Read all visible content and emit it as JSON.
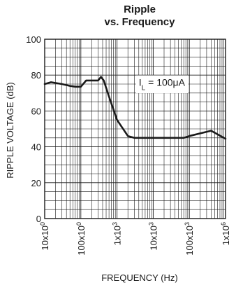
{
  "chart_data": {
    "type": "line",
    "title": "Ripple",
    "subtitle": "vs. Frequency",
    "xlabel": "FREQUENCY (Hz)",
    "ylabel": "RIPPLE VOLTAGE (dB)",
    "x_scale": "log",
    "xlim": [
      10,
      1000000
    ],
    "ylim": [
      0,
      100
    ],
    "grid": true,
    "x_ticks": [
      {
        "value": 10,
        "label": "10x10",
        "sup": "0"
      },
      {
        "value": 100,
        "label": "100x10",
        "sup": "0"
      },
      {
        "value": 1000,
        "label": "1x10",
        "sup": "3"
      },
      {
        "value": 10000,
        "label": "10x10",
        "sup": "3"
      },
      {
        "value": 100000,
        "label": "100x10",
        "sup": "3"
      },
      {
        "value": 1000000,
        "label": "1x10",
        "sup": "6"
      }
    ],
    "y_ticks": [
      0,
      20,
      40,
      60,
      80,
      100
    ],
    "annotation": {
      "main": "I",
      "sub": "L",
      "rest": " = 100μA"
    },
    "series": [
      {
        "x": [
          10,
          15,
          30,
          50,
          70,
          100,
          140,
          200,
          300,
          360,
          430,
          600,
          1000,
          2000,
          3000,
          4000,
          5000,
          7000,
          10000,
          20000,
          40000,
          70000,
          100000,
          200000,
          400000,
          1000000
        ],
        "y": [
          75,
          76,
          75,
          74,
          73.5,
          73.5,
          77,
          77,
          77,
          79,
          77,
          68,
          55,
          46,
          45,
          45,
          45,
          45,
          45,
          45,
          45,
          45,
          46,
          47.5,
          49,
          44.5
        ]
      }
    ]
  }
}
